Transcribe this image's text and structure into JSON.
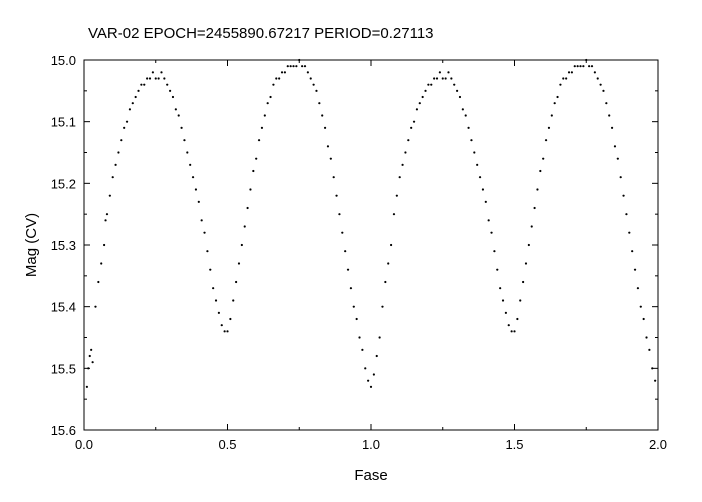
{
  "chart_data": {
    "type": "scatter",
    "title": "VAR-02    EPOCH=2455890.67217    PERIOD=0.27113",
    "xlabel": "Fase",
    "ylabel": "Mag (CV)",
    "xlim": [
      0.0,
      2.0
    ],
    "ylim": [
      15.6,
      15.0
    ],
    "y_inverted": true,
    "grid": false,
    "x_ticks": [
      "0.0",
      "0.5",
      "1.0",
      "1.5",
      "2.0"
    ],
    "y_ticks": [
      "15.0",
      "15.1",
      "15.2",
      "15.3",
      "15.4",
      "15.5",
      "15.6"
    ],
    "series": [
      {
        "marker": "dot",
        "color": "#000000",
        "points": [
          [
            0.01,
            15.53
          ],
          [
            0.015,
            15.5
          ],
          [
            0.02,
            15.48
          ],
          [
            0.025,
            15.47
          ],
          [
            0.03,
            15.49
          ],
          [
            0.04,
            15.4
          ],
          [
            0.05,
            15.36
          ],
          [
            0.06,
            15.33
          ],
          [
            0.07,
            15.3
          ],
          [
            0.075,
            15.26
          ],
          [
            0.08,
            15.25
          ],
          [
            0.09,
            15.22
          ],
          [
            0.1,
            15.19
          ],
          [
            0.11,
            15.17
          ],
          [
            0.12,
            15.15
          ],
          [
            0.13,
            15.13
          ],
          [
            0.14,
            15.11
          ],
          [
            0.15,
            15.1
          ],
          [
            0.16,
            15.08
          ],
          [
            0.17,
            15.07
          ],
          [
            0.18,
            15.06
          ],
          [
            0.19,
            15.05
          ],
          [
            0.2,
            15.04
          ],
          [
            0.21,
            15.04
          ],
          [
            0.22,
            15.03
          ],
          [
            0.23,
            15.03
          ],
          [
            0.24,
            15.02
          ],
          [
            0.25,
            15.03
          ],
          [
            0.26,
            15.03
          ],
          [
            0.27,
            15.02
          ],
          [
            0.28,
            15.03
          ],
          [
            0.29,
            15.04
          ],
          [
            0.3,
            15.05
          ],
          [
            0.31,
            15.06
          ],
          [
            0.32,
            15.08
          ],
          [
            0.33,
            15.09
          ],
          [
            0.34,
            15.11
          ],
          [
            0.35,
            15.13
          ],
          [
            0.36,
            15.15
          ],
          [
            0.37,
            15.17
          ],
          [
            0.38,
            15.19
          ],
          [
            0.39,
            15.21
          ],
          [
            0.4,
            15.23
          ],
          [
            0.41,
            15.26
          ],
          [
            0.42,
            15.28
          ],
          [
            0.43,
            15.31
          ],
          [
            0.44,
            15.34
          ],
          [
            0.45,
            15.37
          ],
          [
            0.46,
            15.39
          ],
          [
            0.47,
            15.41
          ],
          [
            0.48,
            15.43
          ],
          [
            0.49,
            15.44
          ],
          [
            0.5,
            15.44
          ],
          [
            0.51,
            15.42
          ],
          [
            0.52,
            15.39
          ],
          [
            0.53,
            15.36
          ],
          [
            0.54,
            15.33
          ],
          [
            0.55,
            15.3
          ],
          [
            0.56,
            15.27
          ],
          [
            0.57,
            15.24
          ],
          [
            0.58,
            15.21
          ],
          [
            0.59,
            15.18
          ],
          [
            0.6,
            15.16
          ],
          [
            0.61,
            15.13
          ],
          [
            0.62,
            15.11
          ],
          [
            0.63,
            15.09
          ],
          [
            0.64,
            15.07
          ],
          [
            0.65,
            15.06
          ],
          [
            0.66,
            15.04
          ],
          [
            0.67,
            15.03
          ],
          [
            0.68,
            15.03
          ],
          [
            0.69,
            15.02
          ],
          [
            0.7,
            15.02
          ],
          [
            0.71,
            15.01
          ],
          [
            0.72,
            15.01
          ],
          [
            0.73,
            15.01
          ],
          [
            0.74,
            15.01
          ],
          [
            0.75,
            15.0
          ],
          [
            0.76,
            15.01
          ],
          [
            0.77,
            15.01
          ],
          [
            0.78,
            15.02
          ],
          [
            0.79,
            15.03
          ],
          [
            0.8,
            15.04
          ],
          [
            0.81,
            15.05
          ],
          [
            0.82,
            15.07
          ],
          [
            0.83,
            15.09
          ],
          [
            0.84,
            15.11
          ],
          [
            0.85,
            15.14
          ],
          [
            0.86,
            15.16
          ],
          [
            0.87,
            15.19
          ],
          [
            0.88,
            15.22
          ],
          [
            0.89,
            15.25
          ],
          [
            0.9,
            15.28
          ],
          [
            0.91,
            15.31
          ],
          [
            0.92,
            15.34
          ],
          [
            0.93,
            15.37
          ],
          [
            0.94,
            15.4
          ],
          [
            0.95,
            15.42
          ],
          [
            0.96,
            15.45
          ],
          [
            0.97,
            15.47
          ],
          [
            0.98,
            15.5
          ],
          [
            0.99,
            15.52
          ],
          [
            1.0,
            15.53
          ],
          [
            1.01,
            15.51
          ],
          [
            1.02,
            15.48
          ],
          [
            1.03,
            15.45
          ],
          [
            1.04,
            15.4
          ],
          [
            1.05,
            15.36
          ],
          [
            1.06,
            15.33
          ],
          [
            1.07,
            15.3
          ],
          [
            1.08,
            15.25
          ],
          [
            1.09,
            15.22
          ],
          [
            1.1,
            15.19
          ],
          [
            1.11,
            15.17
          ],
          [
            1.12,
            15.15
          ],
          [
            1.13,
            15.13
          ],
          [
            1.14,
            15.11
          ],
          [
            1.15,
            15.1
          ],
          [
            1.16,
            15.08
          ],
          [
            1.17,
            15.07
          ],
          [
            1.18,
            15.06
          ],
          [
            1.19,
            15.05
          ],
          [
            1.2,
            15.04
          ],
          [
            1.21,
            15.04
          ],
          [
            1.22,
            15.03
          ],
          [
            1.23,
            15.03
          ],
          [
            1.24,
            15.02
          ],
          [
            1.25,
            15.03
          ],
          [
            1.26,
            15.03
          ],
          [
            1.27,
            15.02
          ],
          [
            1.28,
            15.03
          ],
          [
            1.29,
            15.04
          ],
          [
            1.3,
            15.05
          ],
          [
            1.31,
            15.06
          ],
          [
            1.32,
            15.08
          ],
          [
            1.33,
            15.09
          ],
          [
            1.34,
            15.11
          ],
          [
            1.35,
            15.13
          ],
          [
            1.36,
            15.15
          ],
          [
            1.37,
            15.17
          ],
          [
            1.38,
            15.19
          ],
          [
            1.39,
            15.21
          ],
          [
            1.4,
            15.23
          ],
          [
            1.41,
            15.26
          ],
          [
            1.42,
            15.28
          ],
          [
            1.43,
            15.31
          ],
          [
            1.44,
            15.34
          ],
          [
            1.45,
            15.37
          ],
          [
            1.46,
            15.39
          ],
          [
            1.47,
            15.41
          ],
          [
            1.48,
            15.43
          ],
          [
            1.49,
            15.44
          ],
          [
            1.5,
            15.44
          ],
          [
            1.51,
            15.42
          ],
          [
            1.52,
            15.39
          ],
          [
            1.53,
            15.36
          ],
          [
            1.54,
            15.33
          ],
          [
            1.55,
            15.3
          ],
          [
            1.56,
            15.27
          ],
          [
            1.57,
            15.24
          ],
          [
            1.58,
            15.21
          ],
          [
            1.59,
            15.18
          ],
          [
            1.6,
            15.16
          ],
          [
            1.61,
            15.13
          ],
          [
            1.62,
            15.11
          ],
          [
            1.63,
            15.09
          ],
          [
            1.64,
            15.07
          ],
          [
            1.65,
            15.06
          ],
          [
            1.66,
            15.04
          ],
          [
            1.67,
            15.03
          ],
          [
            1.68,
            15.03
          ],
          [
            1.69,
            15.02
          ],
          [
            1.7,
            15.02
          ],
          [
            1.71,
            15.01
          ],
          [
            1.72,
            15.01
          ],
          [
            1.73,
            15.01
          ],
          [
            1.74,
            15.01
          ],
          [
            1.75,
            15.0
          ],
          [
            1.76,
            15.01
          ],
          [
            1.77,
            15.01
          ],
          [
            1.78,
            15.02
          ],
          [
            1.79,
            15.03
          ],
          [
            1.8,
            15.04
          ],
          [
            1.81,
            15.05
          ],
          [
            1.82,
            15.07
          ],
          [
            1.83,
            15.09
          ],
          [
            1.84,
            15.11
          ],
          [
            1.85,
            15.14
          ],
          [
            1.86,
            15.16
          ],
          [
            1.87,
            15.19
          ],
          [
            1.88,
            15.22
          ],
          [
            1.89,
            15.25
          ],
          [
            1.9,
            15.28
          ],
          [
            1.91,
            15.31
          ],
          [
            1.92,
            15.34
          ],
          [
            1.93,
            15.37
          ],
          [
            1.94,
            15.4
          ],
          [
            1.95,
            15.42
          ],
          [
            1.96,
            15.45
          ],
          [
            1.97,
            15.47
          ],
          [
            1.98,
            15.5
          ],
          [
            1.99,
            15.52
          ]
        ]
      }
    ]
  }
}
